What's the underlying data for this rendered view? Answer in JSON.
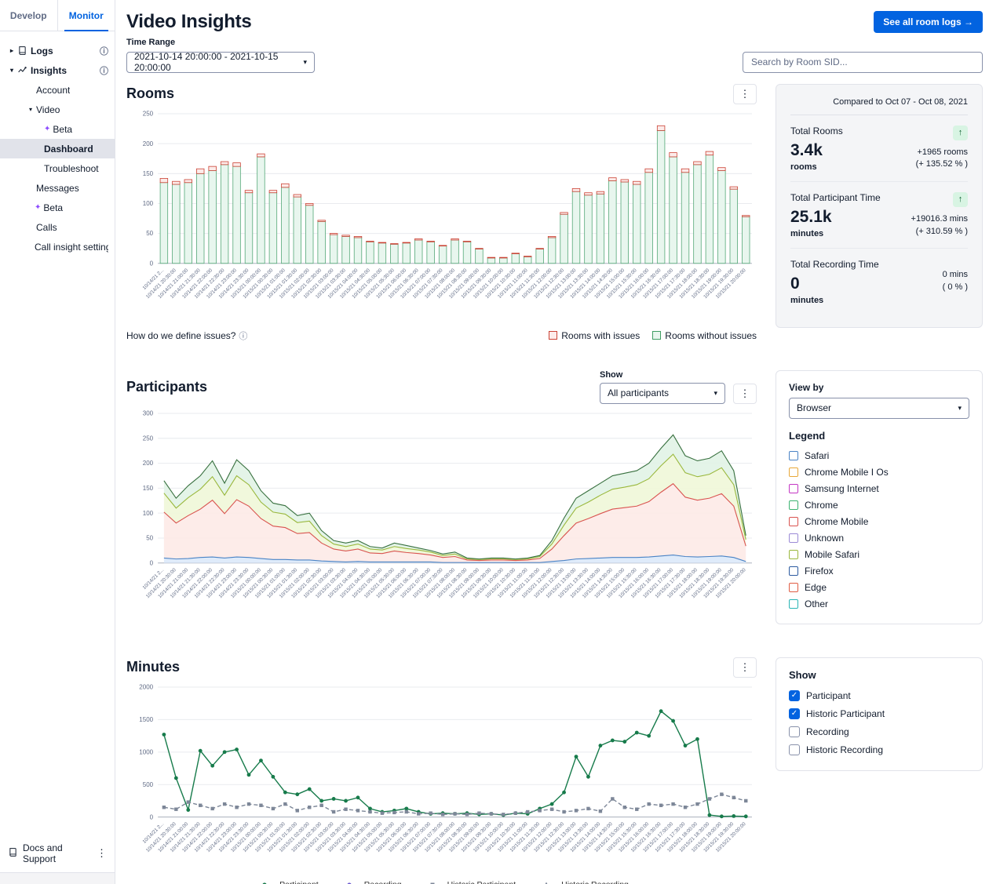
{
  "icons": {
    "kebab": "⋮",
    "info": "ⓘ",
    "sparkle": "✦",
    "chevron_down": "▾",
    "chevron_right": "▸",
    "select_chevron": "▾",
    "arrow_up": "↑",
    "check": "✓"
  },
  "sidebar": {
    "tabs": [
      {
        "label": "Develop",
        "active": false
      },
      {
        "label": "Monitor",
        "active": true
      }
    ],
    "nav": [
      {
        "label": "Logs"
      },
      {
        "label": "Insights"
      },
      {
        "label": "Account"
      },
      {
        "label": "Video"
      },
      {
        "label": "Beta"
      },
      {
        "label": "Dashboard",
        "active": true
      },
      {
        "label": "Troubleshoot"
      },
      {
        "label": "Messages"
      },
      {
        "label": "Beta"
      },
      {
        "label": "Calls"
      },
      {
        "label": "Call insight settings"
      }
    ],
    "footer": {
      "docs_label": "Docs and Support"
    }
  },
  "header": {
    "title": "Video Insights",
    "room_logs_button": "See all room logs →"
  },
  "controls": {
    "time_range_label": "Time Range",
    "time_range_value": "2021-10-14 20:00:00 - 2021-10-15 20:00:00",
    "search_placeholder": "Search by Room SID..."
  },
  "rooms_section": {
    "title": "Rooms",
    "issues_question": "How do we define issues?",
    "legend": [
      {
        "label": "Rooms with issues",
        "color": "#cb4335"
      },
      {
        "label": "Rooms without issues",
        "color": "#3f9e63"
      }
    ]
  },
  "stats_panel": {
    "compared_label": "Compared to Oct 07 - Oct 08, 2021",
    "rows": [
      {
        "label": "Total Rooms",
        "value": "3.4k",
        "unit": "rooms",
        "delta_line1": "+1965 rooms",
        "delta_line2": "(+ 135.52 % )",
        "trend": "up"
      },
      {
        "label": "Total Participant Time",
        "value": "25.1k",
        "unit": "minutes",
        "delta_line1": "+19016.3 mins",
        "delta_line2": "(+ 310.59 % )",
        "trend": "up"
      },
      {
        "label": "Total Recording Time",
        "value": "0",
        "unit": "minutes",
        "delta_line1": "0 mins",
        "delta_line2": "( 0 % )",
        "trend": "none"
      }
    ]
  },
  "participants_section": {
    "title": "Participants",
    "show_label": "Show",
    "show_value": "All participants"
  },
  "participants_panel": {
    "view_by_label": "View by",
    "view_by_value": "Browser",
    "legend_title": "Legend",
    "legend": [
      {
        "label": "Safari",
        "color": "#4a83c5"
      },
      {
        "label": "Chrome Mobile I Os",
        "color": "#e8a838"
      },
      {
        "label": "Samsung Internet",
        "color": "#c437c4"
      },
      {
        "label": "Chrome",
        "color": "#3cb371"
      },
      {
        "label": "Chrome Mobile",
        "color": "#d9534f"
      },
      {
        "label": "Unknown",
        "color": "#9b8ad6"
      },
      {
        "label": "Mobile Safari",
        "color": "#9ab83d"
      },
      {
        "label": "Firefox",
        "color": "#2c5aa0"
      },
      {
        "label": "Edge",
        "color": "#e05d44"
      },
      {
        "label": "Other",
        "color": "#2ab5b5"
      }
    ]
  },
  "minutes_section": {
    "title": "Minutes",
    "legend": [
      {
        "label": "Participant",
        "color": "#177b4b"
      },
      {
        "label": "Recording",
        "color": "#6d5bd0"
      },
      {
        "label": "Historic Participant",
        "color": "#7d8798"
      },
      {
        "label": "Historic Recording",
        "color": "#7d8798"
      }
    ]
  },
  "minutes_panel": {
    "show_label": "Show",
    "items": [
      {
        "label": "Participant",
        "checked": true
      },
      {
        "label": "Historic Participant",
        "checked": true
      },
      {
        "label": "Recording",
        "checked": false
      },
      {
        "label": "Historic Recording",
        "checked": false
      }
    ]
  },
  "chart_data": [
    {
      "id": "rooms",
      "type": "bar",
      "stacked": true,
      "title": "Rooms",
      "ylim": [
        0,
        250
      ],
      "yticks": [
        0,
        50,
        100,
        150,
        200,
        250
      ],
      "grid": true,
      "legend_position": "bottom-right",
      "categories": [
        "10/14/21 2...",
        "10/14/21 20:30:00",
        "10/14/21 21:00:00",
        "10/14/21 21:30:00",
        "10/14/21 22:00:00",
        "10/14/21 22:30:00",
        "10/14/21 23:00:00",
        "10/14/21 23:30:00",
        "10/15/21 00:00:00",
        "10/15/21 00:30:00",
        "10/15/21 01:00:00",
        "10/15/21 01:30:00",
        "10/15/21 02:00:00",
        "10/15/21 02:30:00",
        "10/15/21 03:00:00",
        "10/15/21 03:30:00",
        "10/15/21 04:00:00",
        "10/15/21 04:30:00",
        "10/15/21 05:00:00",
        "10/15/21 05:30:00",
        "10/15/21 06:00:00",
        "10/15/21 06:30:00",
        "10/15/21 07:00:00",
        "10/15/21 07:30:00",
        "10/15/21 08:00:00",
        "10/15/21 08:30:00",
        "10/15/21 09:00:00",
        "10/15/21 09:30:00",
        "10/15/21 10:00:00",
        "10/15/21 10:30:00",
        "10/15/21 11:00:00",
        "10/15/21 11:30:00",
        "10/15/21 12:00:00",
        "10/15/21 12:30:00",
        "10/15/21 13:00:00",
        "10/15/21 13:30:00",
        "10/15/21 14:00:00",
        "10/15/21 14:30:00",
        "10/15/21 15:00:00",
        "10/15/21 15:30:00",
        "10/15/21 16:00:00",
        "10/15/21 16:30:00",
        "10/15/21 17:00:00",
        "10/15/21 17:30:00",
        "10/15/21 18:00:00",
        "10/15/21 18:30:00",
        "10/15/21 19:00:00",
        "10/15/21 19:30:00",
        "10/15/21 20:00:00"
      ],
      "series": [
        {
          "name": "Rooms without issues",
          "fill": "#e8f6ee",
          "stroke": "#55a878",
          "values": [
            135,
            132,
            135,
            150,
            155,
            165,
            162,
            118,
            178,
            118,
            127,
            111,
            97,
            70,
            48,
            45,
            43,
            36,
            34,
            32,
            34,
            39,
            36,
            29,
            39,
            36,
            24,
            9,
            9,
            16,
            11,
            24,
            43,
            82,
            120,
            114,
            116,
            138,
            136,
            132,
            152,
            222,
            178,
            152,
            165,
            181,
            155,
            124,
            78
          ]
        },
        {
          "name": "Rooms with issues",
          "fill": "#fcebe9",
          "stroke": "#cb4335",
          "values": [
            7,
            5,
            5,
            8,
            7,
            5,
            6,
            4,
            5,
            4,
            6,
            4,
            3,
            2,
            2,
            2,
            2,
            1,
            1,
            1,
            1,
            2,
            1,
            1,
            2,
            1,
            1,
            1,
            1,
            1,
            1,
            1,
            2,
            3,
            5,
            4,
            4,
            5,
            4,
            5,
            6,
            8,
            7,
            6,
            5,
            6,
            5,
            4,
            2
          ]
        }
      ]
    },
    {
      "id": "participants",
      "type": "area",
      "stacked": true,
      "title": "Participants",
      "ylim": [
        0,
        300
      ],
      "yticks": [
        0,
        50,
        100,
        150,
        200,
        250,
        300
      ],
      "grid": true,
      "categories_same_as": "rooms",
      "note": "values estimated from stacked area pixel heights",
      "series": [
        {
          "name": "Safari",
          "fill": "#dce9f9",
          "stroke": "#4a83c5",
          "values": [
            10,
            8,
            9,
            11,
            12,
            10,
            12,
            11,
            9,
            7,
            7,
            6,
            6,
            4,
            3,
            2,
            3,
            2,
            2,
            2,
            2,
            2,
            2,
            1,
            1,
            1,
            1,
            1,
            1,
            1,
            1,
            1,
            3,
            5,
            8,
            9,
            10,
            11,
            11,
            11,
            12,
            14,
            16,
            13,
            12,
            13,
            14,
            11,
            3
          ]
        },
        {
          "name": "Chrome Mobile",
          "fill": "#fdeae7",
          "stroke": "#d9534f",
          "values": [
            92,
            72,
            86,
            97,
            114,
            89,
            115,
            103,
            80,
            67,
            64,
            53,
            55,
            36,
            25,
            22,
            25,
            18,
            17,
            22,
            19,
            17,
            14,
            10,
            12,
            5,
            4,
            5,
            5,
            4,
            5,
            8,
            25,
            50,
            72,
            80,
            89,
            97,
            100,
            103,
            111,
            128,
            143,
            119,
            114,
            117,
            125,
            103,
            31
          ]
        },
        {
          "name": "Mobile Safari",
          "fill": "#f0f7d8",
          "stroke": "#9ab83d",
          "values": [
            38,
            30,
            36,
            40,
            47,
            37,
            48,
            43,
            33,
            28,
            27,
            22,
            23,
            15,
            10,
            9,
            10,
            8,
            7,
            9,
            8,
            7,
            6,
            4,
            5,
            2,
            2,
            2,
            2,
            2,
            2,
            4,
            10,
            21,
            30,
            33,
            37,
            40,
            41,
            43,
            46,
            53,
            59,
            49,
            47,
            48,
            52,
            43,
            13
          ]
        },
        {
          "name": "Chrome",
          "fill": "#e1f3e5",
          "stroke": "#38703f",
          "values": [
            25,
            20,
            24,
            27,
            32,
            24,
            32,
            28,
            23,
            18,
            17,
            14,
            16,
            10,
            7,
            7,
            7,
            5,
            4,
            7,
            6,
            4,
            3,
            3,
            4,
            2,
            1,
            2,
            2,
            1,
            2,
            2,
            7,
            14,
            20,
            23,
            24,
            27,
            28,
            28,
            31,
            35,
            39,
            34,
            32,
            32,
            34,
            28,
            8
          ]
        }
      ]
    },
    {
      "id": "minutes",
      "type": "line",
      "title": "Minutes",
      "ylim": [
        0,
        2000
      ],
      "yticks": [
        0,
        500,
        1000,
        1500,
        2000
      ],
      "grid": true,
      "categories_same_as": "rooms",
      "series": [
        {
          "name": "Participant",
          "color": "#177b4b",
          "marker": "circle",
          "values": [
            1270,
            600,
            110,
            1020,
            790,
            1000,
            1040,
            650,
            870,
            620,
            380,
            350,
            430,
            250,
            280,
            250,
            300,
            130,
            80,
            100,
            130,
            80,
            50,
            60,
            50,
            60,
            40,
            50,
            30,
            60,
            50,
            130,
            200,
            380,
            930,
            620,
            1100,
            1180,
            1160,
            1300,
            1250,
            1630,
            1480,
            1100,
            1200,
            30,
            10,
            15,
            10
          ]
        },
        {
          "name": "Historic Participant",
          "color": "#7d8798",
          "marker": "square",
          "dash": true,
          "values": [
            150,
            120,
            230,
            180,
            130,
            200,
            150,
            200,
            180,
            130,
            200,
            100,
            150,
            180,
            80,
            120,
            100,
            80,
            60,
            70,
            80,
            50,
            60,
            40,
            50,
            40,
            60,
            50,
            40,
            60,
            80,
            100,
            120,
            80,
            100,
            130,
            90,
            280,
            150,
            120,
            200,
            180,
            200,
            150,
            200,
            280,
            350,
            300,
            250
          ]
        }
      ]
    }
  ]
}
